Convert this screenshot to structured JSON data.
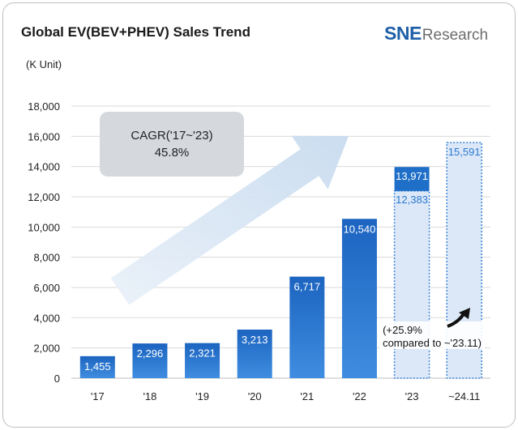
{
  "header": {
    "title": "Global EV(BEV+PHEV)  Sales Trend",
    "unit": "(K Unit)"
  },
  "logo": {
    "brand": "SNE",
    "suffix": "Research"
  },
  "chart_data": {
    "type": "bar",
    "title": "Global EV(BEV+PHEV)  Sales Trend",
    "ylabel": "(K Unit)",
    "xlabel": "",
    "ylim": [
      0,
      18000
    ],
    "yticks": [
      "0",
      "2,000",
      "4,000",
      "6,000",
      "8,000",
      "10,000",
      "12,000",
      "14,000",
      "16,000",
      "18,000"
    ],
    "grid": true,
    "categories": [
      "'17",
      "'18",
      "'19",
      "'20",
      "'21",
      "'22",
      "'23",
      "~24.11"
    ],
    "values": [
      1455,
      2296,
      2321,
      3213,
      6717,
      10540,
      13971,
      15591
    ],
    "value_labels": [
      "1,455",
      "2,296",
      "2,321",
      "3,213",
      "6,717",
      "10,540",
      "13,971",
      "15,591"
    ],
    "partial_values": [
      null,
      null,
      null,
      null,
      null,
      null,
      12383,
      null
    ],
    "partial_value_labels": [
      null,
      null,
      null,
      null,
      null,
      null,
      "12,383",
      null
    ],
    "annotations": {
      "cagr_line1": "CAGR('17~'23)",
      "cagr_line2": "45.8%",
      "growth_line1": "(+25.9%",
      "growth_line2": "compared to ~'23.11)"
    },
    "colors": {
      "bar": "#1f6fc8",
      "bar_light": "#dce8f8",
      "bar_outline": "#3d86d8",
      "arrow": "#d5e4f2",
      "callout": "#d5d9de"
    }
  }
}
